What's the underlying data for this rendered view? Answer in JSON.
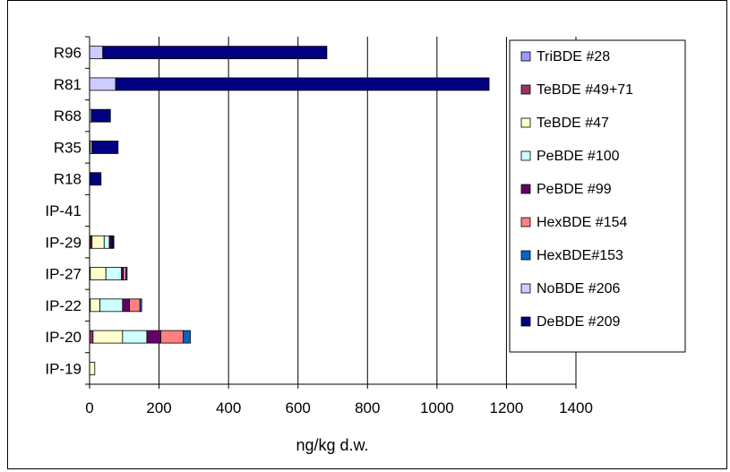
{
  "chart_data": {
    "type": "bar",
    "orientation": "horizontal",
    "stacked": true,
    "title": "",
    "xlabel": "ng/kg d.w.",
    "ylabel": "",
    "xlim": [
      0,
      1400
    ],
    "xticks": [
      0,
      200,
      400,
      600,
      800,
      1000,
      1200,
      1400
    ],
    "xtick_labels": [
      "0",
      "200",
      "400",
      "600",
      "800",
      "1000",
      "1200",
      "1400"
    ],
    "grid": "vertical",
    "legend_position": "right",
    "categories": [
      "R96",
      "R81",
      "R68",
      "R35",
      "R18",
      "IP-41",
      "IP-29",
      "IP-27",
      "IP-22",
      "IP-20",
      "IP-19"
    ],
    "series": [
      {
        "name": "TriBDE #28",
        "color": "#9999ff",
        "values": [
          0,
          0,
          0,
          2,
          0,
          0,
          2,
          0,
          0,
          0,
          0
        ]
      },
      {
        "name": "TeBDE #49+71",
        "color": "#993366",
        "values": [
          0,
          0,
          0,
          0,
          0,
          0,
          5,
          2,
          2,
          10,
          0
        ]
      },
      {
        "name": "TeBDE #47",
        "color": "#ffffcc",
        "values": [
          0,
          0,
          0,
          5,
          0,
          0,
          35,
          45,
          28,
          85,
          15
        ]
      },
      {
        "name": "PeBDE #100",
        "color": "#ccffff",
        "values": [
          0,
          0,
          0,
          0,
          0,
          0,
          15,
          45,
          65,
          70,
          0
        ]
      },
      {
        "name": "PeBDE #99",
        "color": "#660066",
        "values": [
          0,
          0,
          0,
          0,
          0,
          0,
          5,
          5,
          20,
          40,
          0
        ]
      },
      {
        "name": "HexBDE #154",
        "color": "#ff8080",
        "values": [
          0,
          0,
          0,
          0,
          0,
          0,
          0,
          8,
          30,
          65,
          0
        ]
      },
      {
        "name": "HexBDE#153",
        "color": "#0066cc",
        "values": [
          0,
          0,
          0,
          0,
          0,
          0,
          3,
          3,
          5,
          20,
          0
        ]
      },
      {
        "name": "NoBDE #206",
        "color": "#ccccff",
        "values": [
          38,
          75,
          5,
          0,
          0,
          0,
          0,
          0,
          0,
          0,
          0
        ]
      },
      {
        "name": "DeBDE #209",
        "color": "#000080",
        "values": [
          645,
          1075,
          55,
          75,
          33,
          0,
          5,
          0,
          0,
          0,
          0
        ]
      }
    ]
  }
}
